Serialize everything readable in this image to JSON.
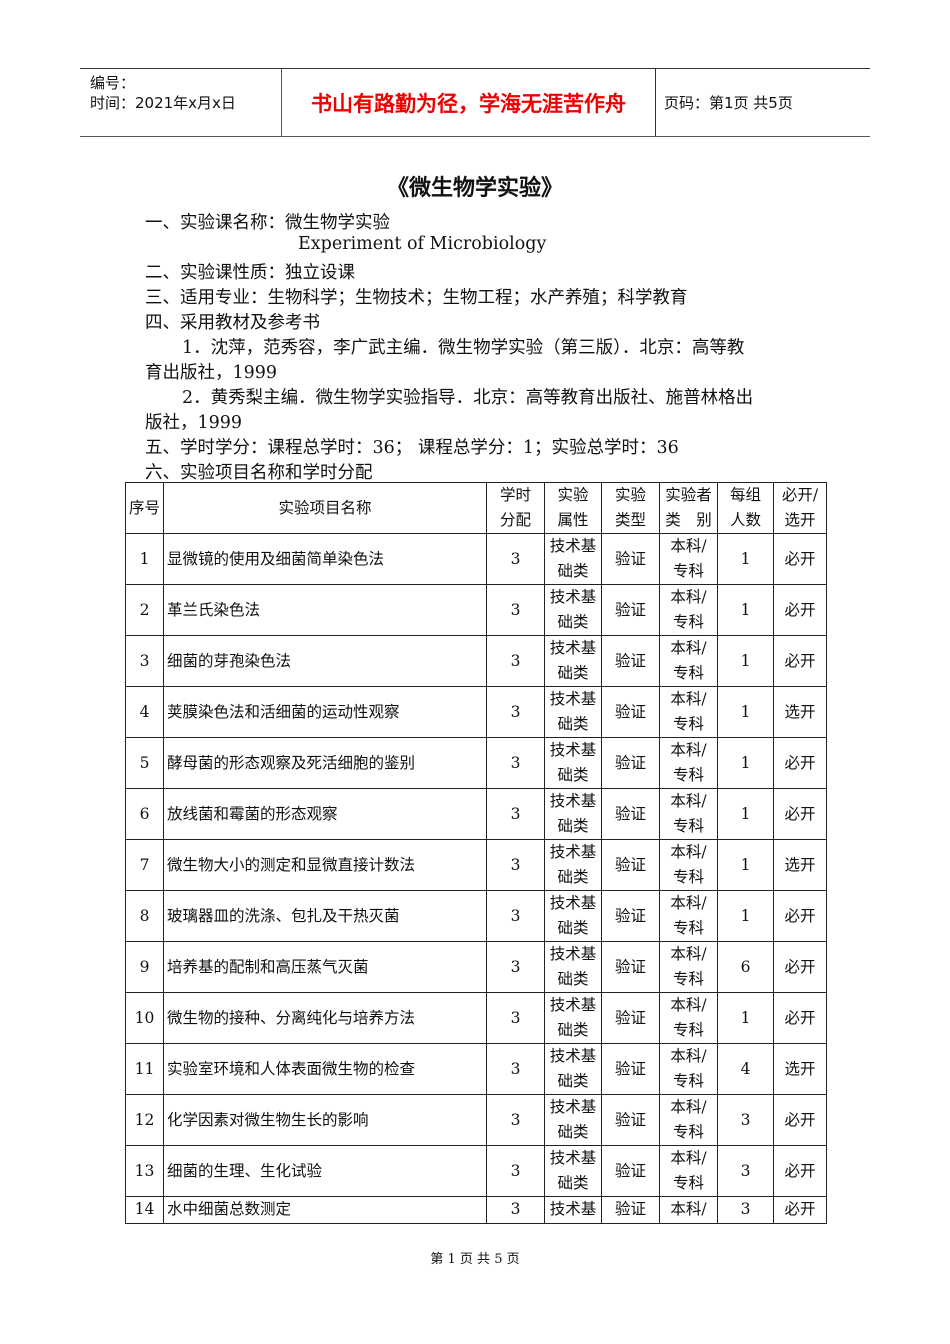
{
  "header": {
    "number_label": "编号：",
    "date_label": "时间：2021年x月x日",
    "motto": "书山有路勤为径，学海无涯苦作舟",
    "page_label": "页码：第1页  共5页"
  },
  "doc": {
    "title": "《微生物学实验》",
    "lines": [
      "一、实验课名称：微生物学实验",
      "Experiment of Microbiology",
      "二、实验课性质：独立设课",
      "三、适用专业：生物科学；生物技术；生物工程；水产养殖；科学教育",
      "四、采用教材及参考书",
      "1．沈萍，范秀容，李广武主编．微生物学实验（第三版）．北京：高等教",
      "育出版社，1999",
      "2．黄秀梨主编．微生物学实验指导．北京：高等教育出版社、施普林格出",
      "版社，1999",
      "五、学时学分：课程总学时：36；  课程总学分：1；实验总学时：36",
      "六、实验项目名称和学时分配"
    ]
  },
  "table": {
    "headers": [
      "序号",
      "实验项目名称",
      "学时\n分配",
      "实验\n属性",
      "实验\n类型",
      "实验者\n类　别",
      "每组\n人数",
      "必开/\n选开"
    ],
    "rows": [
      [
        "1",
        "显微镜的使用及细菌简单染色法",
        "3",
        "技术基\n础类",
        "验证",
        "本科/\n专科",
        "1",
        "必开"
      ],
      [
        "2",
        "革兰氏染色法",
        "3",
        "技术基\n础类",
        "验证",
        "本科/\n专科",
        "1",
        "必开"
      ],
      [
        "3",
        "细菌的芽孢染色法",
        "3",
        "技术基\n础类",
        "验证",
        "本科/\n专科",
        "1",
        "必开"
      ],
      [
        "4",
        "荚膜染色法和活细菌的运动性观察",
        "3",
        "技术基\n础类",
        "验证",
        "本科/\n专科",
        "1",
        "选开"
      ],
      [
        "5",
        "酵母菌的形态观察及死活细胞的鉴别",
        "3",
        "技术基\n础类",
        "验证",
        "本科/\n专科",
        "1",
        "必开"
      ],
      [
        "6",
        "放线菌和霉菌的形态观察",
        "3",
        "技术基\n础类",
        "验证",
        "本科/\n专科",
        "1",
        "必开"
      ],
      [
        "7",
        "微生物大小的测定和显微直接计数法",
        "3",
        "技术基\n础类",
        "验证",
        "本科/\n专科",
        "1",
        "选开"
      ],
      [
        "8",
        "玻璃器皿的洗涤、包扎及干热灭菌",
        "3",
        "技术基\n础类",
        "验证",
        "本科/\n专科",
        "1",
        "必开"
      ],
      [
        "9",
        "培养基的配制和高压蒸气灭菌",
        "3",
        "技术基\n础类",
        "验证",
        "本科/\n专科",
        "6",
        "必开"
      ],
      [
        "10",
        "微生物的接种、分离纯化与培养方法",
        "3",
        "技术基\n础类",
        "验证",
        "本科/\n专科",
        "1",
        "必开"
      ],
      [
        "11",
        "实验室环境和人体表面微生物的检查",
        "3",
        "技术基\n础类",
        "验证",
        "本科/\n专科",
        "4",
        "选开"
      ],
      [
        "12",
        "化学因素对微生物生长的影响",
        "3",
        "技术基\n础类",
        "验证",
        "本科/\n专科",
        "3",
        "必开"
      ],
      [
        "13",
        "细菌的生理、生化试验",
        "3",
        "技术基\n础类",
        "验证",
        "本科/\n专科",
        "3",
        "必开"
      ],
      [
        "14",
        "水中细菌总数测定",
        "3",
        "技术基",
        "验证",
        "本科/",
        "3",
        "必开"
      ]
    ]
  },
  "footer": "第 1 页 共 5 页"
}
